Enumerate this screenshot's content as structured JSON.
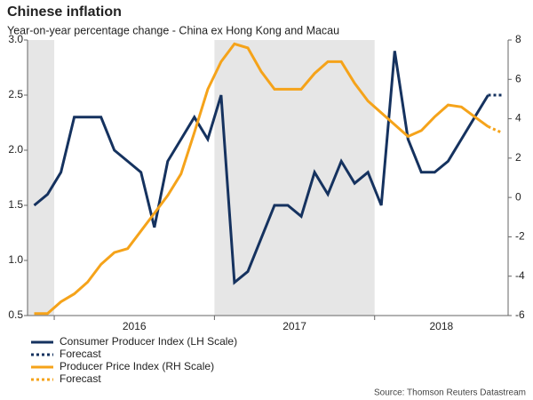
{
  "chart_data": {
    "type": "line",
    "title": "Chinese inflation",
    "subtitle": "Year-on-year percentage change - China ex Hong Kong and Macau",
    "source": "Source: Thomson Reuters Datastream",
    "periods": [
      {
        "label": null,
        "months": 2,
        "shaded": true
      },
      {
        "label": "2016",
        "months": 12,
        "shaded": false
      },
      {
        "label": "2017",
        "months": 12,
        "shaded": true
      },
      {
        "label": "2018",
        "months": 10,
        "shaded": false
      }
    ],
    "ylim": [
      0.5,
      3.0
    ],
    "yticks": [
      0.5,
      {
        "value": 1.0,
        "label": "1.0"
      },
      1.5,
      {
        "value": 2.0,
        "label": "2.0"
      },
      2.5,
      {
        "value": 3.0,
        "label": "3.0"
      }
    ],
    "y2lim": [
      -6,
      8
    ],
    "y2ticks": [
      -6,
      -4,
      -2,
      0,
      2,
      4,
      6,
      8
    ],
    "series": [
      {
        "name": "Consumer Producer Index (LH Scale)",
        "color": "#15325f",
        "axis": "y",
        "dashed": false,
        "values": [
          1.5,
          1.6,
          1.8,
          2.3,
          2.3,
          2.3,
          2.0,
          1.9,
          1.8,
          1.3,
          1.9,
          2.1,
          2.3,
          2.1,
          2.5,
          0.8,
          0.9,
          1.2,
          1.5,
          1.5,
          1.4,
          1.8,
          1.6,
          1.9,
          1.7,
          1.8,
          1.5,
          2.9,
          2.1,
          1.8,
          1.8,
          1.9,
          2.1,
          2.3,
          2.5,
          null
        ]
      },
      {
        "name": "Forecast",
        "color": "#15325f",
        "axis": "y",
        "dashed": true,
        "values": [
          null,
          null,
          null,
          null,
          null,
          null,
          null,
          null,
          null,
          null,
          null,
          null,
          null,
          null,
          null,
          null,
          null,
          null,
          null,
          null,
          null,
          null,
          null,
          null,
          null,
          null,
          null,
          null,
          null,
          null,
          null,
          null,
          null,
          null,
          2.5,
          2.5
        ]
      },
      {
        "name": "Producer Price Index (RH Scale)",
        "color": "#f5a31a",
        "axis": "y2",
        "dashed": false,
        "values": [
          -5.9,
          -5.9,
          -5.3,
          -4.9,
          -4.3,
          -3.4,
          -2.8,
          -2.6,
          -1.7,
          -0.8,
          0.1,
          1.2,
          3.3,
          5.5,
          6.9,
          7.8,
          7.6,
          6.4,
          5.5,
          5.5,
          5.5,
          6.3,
          6.9,
          6.9,
          5.8,
          4.9,
          4.3,
          3.7,
          3.1,
          3.4,
          4.1,
          4.7,
          4.6,
          4.1,
          3.6,
          null
        ]
      },
      {
        "name": "Forecast",
        "color": "#f5a31a",
        "axis": "y2",
        "dashed": true,
        "values": [
          null,
          null,
          null,
          null,
          null,
          null,
          null,
          null,
          null,
          null,
          null,
          null,
          null,
          null,
          null,
          null,
          null,
          null,
          null,
          null,
          null,
          null,
          null,
          null,
          null,
          null,
          null,
          null,
          null,
          null,
          null,
          null,
          null,
          null,
          3.6,
          3.3
        ]
      }
    ]
  }
}
